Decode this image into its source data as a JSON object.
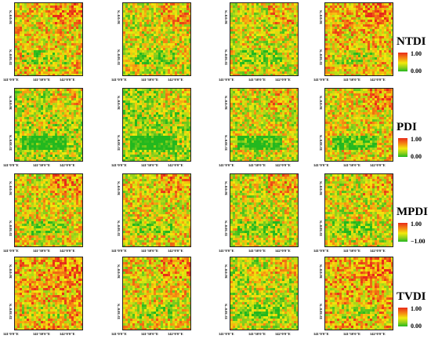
{
  "coordinates": {
    "lon": [
      "141°0'0\"E",
      "141°30'0\"E",
      "142°0'0\"E"
    ],
    "lat": [
      "36°0'0\"N",
      "35°30'0\"N"
    ]
  },
  "rows": [
    {
      "index": "ntdi",
      "title": "NTDI",
      "max": "1.00",
      "min": "0.00"
    },
    {
      "index": "pdi",
      "title": "PDI",
      "max": "1.00",
      "min": "0.00"
    },
    {
      "index": "mpdi",
      "title": "MPDI",
      "max": "1.00",
      "min": "−1.00"
    },
    {
      "index": "tvdi",
      "title": "TVDI",
      "max": "1.00",
      "min": "0.00"
    }
  ],
  "colors": {
    "high": "#e82a1a",
    "mid_high": "#f58a12",
    "mid": "#f2e90c",
    "mid_low": "#8ed01c",
    "low": "#22b81f"
  }
}
